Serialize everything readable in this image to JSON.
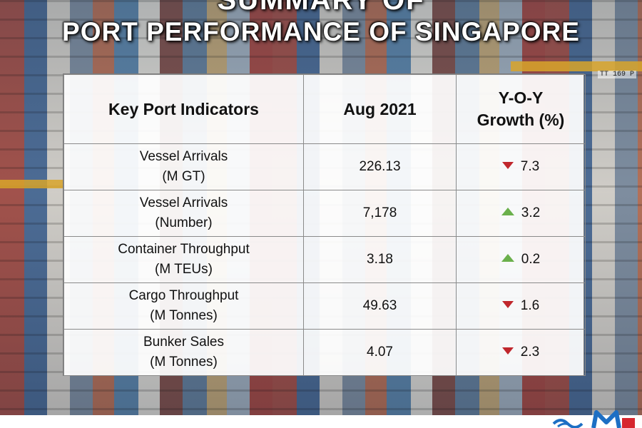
{
  "title": {
    "line1": "SUMMARY OF",
    "line2": "PORT PERFORMANCE OF SINGAPORE"
  },
  "background": {
    "crane_label": "TT 169 P"
  },
  "table": {
    "headers": {
      "indicator": "Key Port Indicators",
      "value": "Aug 2021",
      "growth_line1": "Y-O-Y",
      "growth_line2": "Growth (%)"
    },
    "rows": [
      {
        "name": "Vessel Arrivals",
        "unit": "(M GT)",
        "value": "226.13",
        "growth": "7.3",
        "direction": "down"
      },
      {
        "name": "Vessel Arrivals",
        "unit": "(Number)",
        "value": "7,178",
        "growth": "3.2",
        "direction": "up"
      },
      {
        "name": "Container Throughput",
        "unit": "(M TEUs)",
        "value": "3.18",
        "growth": "0.2",
        "direction": "up"
      },
      {
        "name": "Cargo Throughput",
        "unit": "(M Tonnes)",
        "value": "49.63",
        "growth": "1.6",
        "direction": "down"
      },
      {
        "name": "Bunker Sales",
        "unit": "(M Tonnes)",
        "value": "4.07",
        "growth": "2.3",
        "direction": "down"
      }
    ]
  },
  "colors": {
    "up": "#6ab04c",
    "down": "#c0272d",
    "logo_blue": "#1d6fc4",
    "logo_red": "#d6262e"
  },
  "icons": {
    "up": "triangle-up-icon",
    "down": "triangle-down-icon",
    "logo": "mpa-logo-icon"
  }
}
